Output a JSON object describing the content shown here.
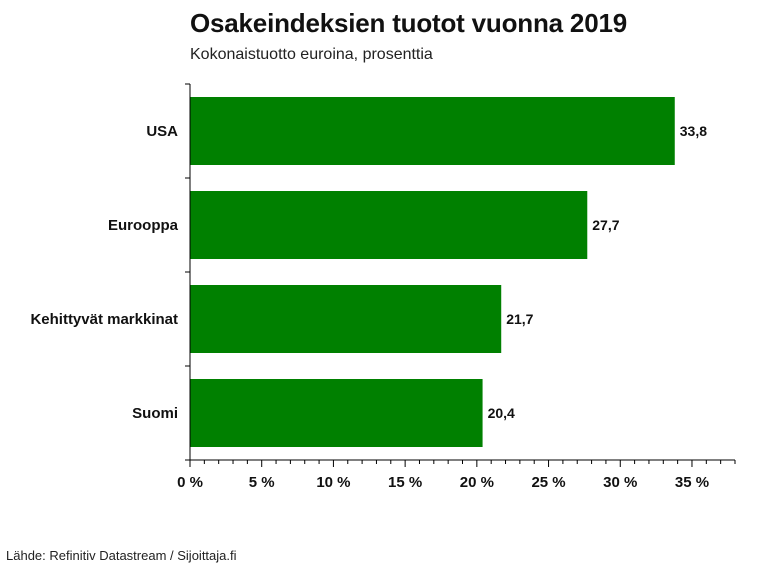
{
  "title": "Osakeindeksien tuotot vuonna 2019",
  "subtitle": "Kokonaistuotto euroina, prosenttia",
  "source": "Lähde: Refinitiv Datastream / Sijoittaja.fi",
  "colors": {
    "bar": "#008000",
    "axis": "#000000"
  },
  "chart_data": {
    "type": "bar",
    "orientation": "horizontal",
    "title": "Osakeindeksien tuotot vuonna 2019",
    "subtitle": "Kokonaistuotto euroina, prosenttia",
    "categories": [
      "USA",
      "Eurooppa",
      "Kehittyvät markkinat",
      "Suomi"
    ],
    "values": [
      33.8,
      27.7,
      21.7,
      20.4
    ],
    "value_labels": [
      "33,8",
      "27,7",
      "21,7",
      "20,4"
    ],
    "xlim": [
      0,
      38
    ],
    "xticks": [
      0,
      5,
      10,
      15,
      20,
      25,
      30,
      35
    ],
    "xtick_labels": [
      "0 %",
      "5 %",
      "10 %",
      "15 %",
      "20 %",
      "25 %",
      "30 %",
      "35 %"
    ],
    "xlabel": "",
    "ylabel": "",
    "grid": false,
    "legend": "none"
  }
}
